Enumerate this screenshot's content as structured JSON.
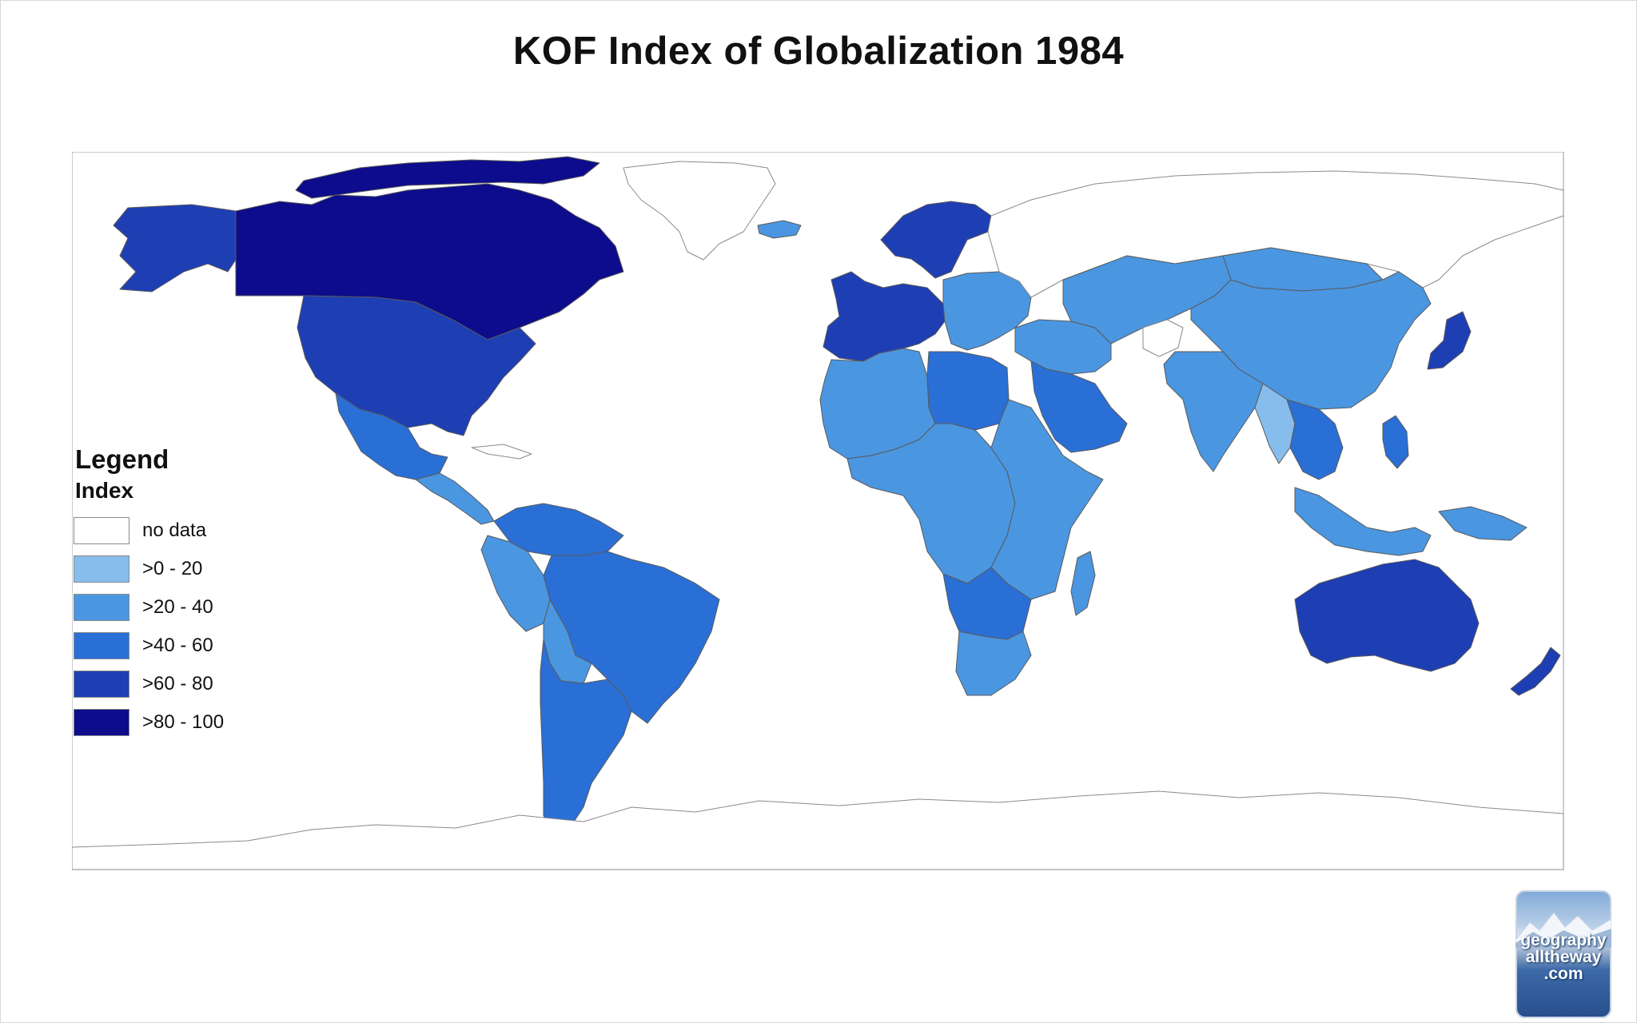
{
  "title": "KOF Index of Globalization 1984",
  "legend": {
    "title": "Legend",
    "subtitle": "Index",
    "items": [
      {
        "label": "no data",
        "color": "#ffffff"
      },
      {
        "label": ">0 - 20",
        "color": "#87bdec"
      },
      {
        "label": ">20 - 40",
        "color": "#4a96e1"
      },
      {
        "label": ">40 - 60",
        "color": "#2a6fd5"
      },
      {
        "label": ">60 - 80",
        "color": "#1e3eb3"
      },
      {
        "label": ">80 - 100",
        "color": "#0c0c8c"
      }
    ]
  },
  "colors": {
    "water": "#ffffff",
    "nodata": "#ffffff",
    "border": "#5a5a5a",
    "coast": "#8a8a8a"
  },
  "watermark": {
    "lines": [
      "geography",
      "alltheway",
      ".com"
    ]
  },
  "regions": [
    {
      "name": "canada",
      "class": 5
    },
    {
      "name": "alaska",
      "class": 4
    },
    {
      "name": "arctic-islands",
      "class": 5
    },
    {
      "name": "usa",
      "class": 4
    },
    {
      "name": "mexico",
      "class": 3
    },
    {
      "name": "central-america",
      "class": 2
    },
    {
      "name": "cuba",
      "class": 0
    },
    {
      "name": "colombia-venezuela",
      "class": 3
    },
    {
      "name": "peru-ecuador",
      "class": 2
    },
    {
      "name": "brazil",
      "class": 3
    },
    {
      "name": "bolivia",
      "class": 2
    },
    {
      "name": "chile-argentina",
      "class": 3
    },
    {
      "name": "greenland",
      "class": 0
    },
    {
      "name": "iceland",
      "class": 2
    },
    {
      "name": "scandinavia",
      "class": 4
    },
    {
      "name": "western-europe",
      "class": 4
    },
    {
      "name": "eastern-europe",
      "class": 2
    },
    {
      "name": "russia",
      "class": 0
    },
    {
      "name": "north-africa",
      "class": 2
    },
    {
      "name": "libya",
      "class": 3
    },
    {
      "name": "west-central-africa",
      "class": 2
    },
    {
      "name": "east-africa",
      "class": 2
    },
    {
      "name": "southern-africa",
      "class": 3
    },
    {
      "name": "south-africa",
      "class": 2
    },
    {
      "name": "madagascar",
      "class": 2
    },
    {
      "name": "arabia",
      "class": 3
    },
    {
      "name": "middle-east",
      "class": 2
    },
    {
      "name": "central-asia",
      "class": 2
    },
    {
      "name": "china",
      "class": 2
    },
    {
      "name": "mongolia",
      "class": 2
    },
    {
      "name": "afghanistan",
      "class": 0
    },
    {
      "name": "india",
      "class": 2
    },
    {
      "name": "myanmar",
      "class": 1
    },
    {
      "name": "southeast-asia",
      "class": 3
    },
    {
      "name": "japan",
      "class": 4
    },
    {
      "name": "indonesia",
      "class": 2
    },
    {
      "name": "philippines",
      "class": 3
    },
    {
      "name": "new-guinea",
      "class": 2
    },
    {
      "name": "australia",
      "class": 4
    },
    {
      "name": "new-zealand",
      "class": 4
    },
    {
      "name": "antarctica",
      "class": 0
    }
  ]
}
